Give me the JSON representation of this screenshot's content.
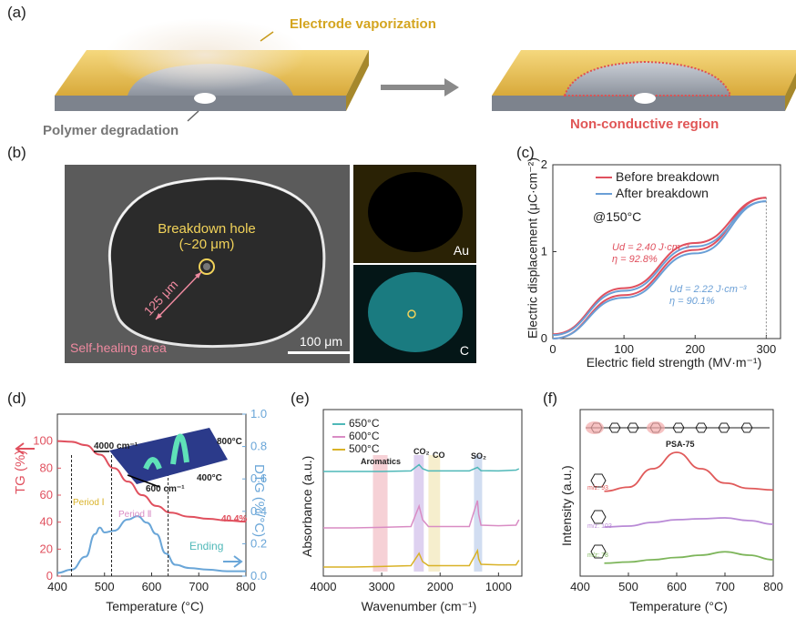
{
  "panels": {
    "a": "(a)",
    "b": "(b)",
    "c": "(c)",
    "d": "(d)",
    "e": "(e)",
    "f": "(f)"
  },
  "a": {
    "vaporization": "Electrode vaporization",
    "degradation": "Polymer degradation",
    "nonconductive": "Non-conductive region"
  },
  "b": {
    "hole_line1": "Breakdown hole",
    "hole_line2": "(~20 μm)",
    "radius": "125 μm",
    "healing": "Self-healing area",
    "scalebar": "100 μm",
    "map_au": "Au",
    "map_c": "C"
  },
  "c": {
    "ylabel": "Electric displacement (μC·cm⁻²)",
    "xlabel": "Electric field strength (MV·m⁻¹)",
    "legend": [
      "Before breakdown",
      "After breakdown"
    ],
    "temp": "@150°C",
    "ud1": "Ud = 2.40 J·cm⁻³",
    "eta1": "η = 92.8%",
    "ud2": "Ud = 2.22 J·cm⁻³",
    "eta2": "η = 90.1%",
    "colors": {
      "before": "#e0505e",
      "after": "#6a9fd6"
    }
  },
  "d": {
    "ylabel_left": "TG (%)",
    "ylabel_right": "DTG (%/°C)",
    "xlabel": "Temperature (°C)",
    "period1": "Period Ⅰ",
    "period2": "Period Ⅱ",
    "ending": "Ending",
    "residue": "40.4%",
    "inset_wn1": "4000 cm⁻¹",
    "inset_wn2": "600 cm⁻¹",
    "inset_t1": "800°C",
    "inset_t2": "400°C",
    "colors": {
      "tg": "#e0505e",
      "dtg": "#6aa6d8"
    }
  },
  "e": {
    "ylabel": "Absorbance (a.u.)",
    "xlabel": "Wavenumber (cm⁻¹)",
    "legend": [
      "650°C",
      "600°C",
      "500°C"
    ],
    "bands": [
      "Aromatics",
      "CO₂",
      "CO",
      "SO₂"
    ],
    "colors": {
      "650": "#4fb8b8",
      "600": "#d98cc4",
      "500": "#d9b227"
    }
  },
  "f": {
    "ylabel": "Intensity (a.u.)",
    "xlabel": "Temperature (°C)",
    "polymer": "PSA-75",
    "fragments": [
      "m/z: 93",
      "m/z: 103",
      "m/z: 78"
    ],
    "colors": {
      "93": "#e05a5a",
      "103": "#b98ad6",
      "78": "#7db55a"
    }
  },
  "chart_data": [
    {
      "type": "line",
      "panel": "c",
      "xlabel": "Electric field strength (MV·m⁻¹)",
      "ylabel": "Electric displacement (μC·cm⁻²)",
      "xlim": [
        0,
        320
      ],
      "ylim": [
        0,
        2
      ],
      "xticks": [
        0,
        100,
        200,
        300
      ],
      "yticks": [
        0,
        1,
        2
      ],
      "series": [
        {
          "name": "Before breakdown",
          "x": [
            0,
            100,
            200,
            300
          ],
          "y_charge": [
            0.05,
            0.58,
            1.1,
            1.62
          ],
          "y_discharge": [
            0,
            0.5,
            1.02,
            1.62
          ]
        },
        {
          "name": "After breakdown",
          "x": [
            0,
            100,
            200,
            300
          ],
          "y_charge": [
            0.04,
            0.55,
            1.06,
            1.58
          ],
          "y_discharge": [
            0,
            0.47,
            0.98,
            1.58
          ]
        }
      ]
    },
    {
      "type": "line",
      "panel": "d",
      "xlabel": "Temperature (°C)",
      "ylabel": "TG (%)",
      "ylabel2": "DTG (%/°C)",
      "xlim": [
        400,
        800
      ],
      "ylim": [
        0,
        120
      ],
      "ylim2": [
        0,
        1
      ],
      "xticks": [
        400,
        500,
        600,
        700,
        800
      ],
      "yticks": [
        0,
        20,
        40,
        60,
        80,
        100
      ],
      "yticks2": [
        0.0,
        0.2,
        0.4,
        0.6,
        0.8,
        1.0
      ],
      "series": [
        {
          "name": "TG",
          "axis": "left",
          "x": [
            400,
            430,
            460,
            490,
            520,
            550,
            580,
            610,
            640,
            680,
            720,
            760,
            800
          ],
          "y": [
            100,
            99.5,
            97,
            90,
            80,
            70,
            60,
            52,
            47,
            44,
            42.5,
            41.2,
            40.4
          ]
        },
        {
          "name": "DTG",
          "axis": "right",
          "x": [
            400,
            430,
            460,
            480,
            490,
            500,
            520,
            550,
            570,
            590,
            610,
            630,
            650,
            680,
            720,
            760,
            800
          ],
          "y": [
            0.02,
            0.04,
            0.12,
            0.26,
            0.3,
            0.27,
            0.28,
            0.35,
            0.37,
            0.33,
            0.26,
            0.14,
            0.07,
            0.05,
            0.04,
            0.03,
            0.03
          ]
        }
      ],
      "markers": [
        430,
        515,
        635
      ]
    },
    {
      "type": "line",
      "panel": "e",
      "xlabel": "Wavenumber (cm⁻¹)",
      "ylabel": "Absorbance (a.u.)",
      "xlim": [
        4000,
        600
      ],
      "xticks": [
        4000,
        3000,
        2000,
        1000
      ],
      "series": [
        {
          "name": "650°C",
          "x": [
            4000,
            3500,
            3000,
            2500,
            2360,
            2300,
            2200,
            2100,
            1500,
            1360,
            1300,
            1000,
            700,
            650
          ],
          "y": [
            0,
            0,
            0,
            0.02,
            0.25,
            0.1,
            0.02,
            0.02,
            0.02,
            0.15,
            0.03,
            0.02,
            0.05,
            0.1
          ]
        },
        {
          "name": "600°C",
          "x": [
            4000,
            3500,
            3000,
            2500,
            2360,
            2300,
            2200,
            2100,
            1500,
            1360,
            1340,
            1300,
            1000,
            700,
            650
          ],
          "y": [
            0,
            0,
            0.02,
            0.05,
            0.8,
            0.3,
            0.05,
            0.05,
            0.05,
            1.0,
            0.5,
            0.1,
            0.08,
            0.1,
            0.3
          ]
        },
        {
          "name": "500°C",
          "x": [
            4000,
            3500,
            3000,
            2500,
            2360,
            2300,
            2200,
            2100,
            1500,
            1360,
            1340,
            1300,
            1000,
            700,
            650
          ],
          "y": [
            0,
            0,
            0.02,
            0.05,
            0.5,
            0.2,
            0.05,
            0.05,
            0.05,
            0.6,
            0.3,
            0.1,
            0.08,
            0.08,
            0.25
          ]
        }
      ]
    },
    {
      "type": "line",
      "panel": "f",
      "xlabel": "Temperature (°C)",
      "ylabel": "Intensity (a.u.)",
      "xlim": [
        400,
        800
      ],
      "xticks": [
        400,
        500,
        600,
        700,
        800
      ],
      "series": [
        {
          "name": "m/z: 93",
          "x": [
            450,
            500,
            550,
            600,
            650,
            700,
            750,
            800
          ],
          "y": [
            0.05,
            0.15,
            0.6,
            1.0,
            0.6,
            0.25,
            0.12,
            0.08
          ]
        },
        {
          "name": "m/z: 103",
          "x": [
            450,
            500,
            550,
            600,
            650,
            700,
            750,
            800
          ],
          "y": [
            0.05,
            0.1,
            0.3,
            0.45,
            0.5,
            0.55,
            0.4,
            0.2
          ]
        },
        {
          "name": "m/z: 78",
          "x": [
            450,
            500,
            550,
            600,
            650,
            700,
            750,
            800
          ],
          "y": [
            0.05,
            0.1,
            0.2,
            0.3,
            0.4,
            0.55,
            0.4,
            0.2
          ]
        }
      ]
    }
  ]
}
